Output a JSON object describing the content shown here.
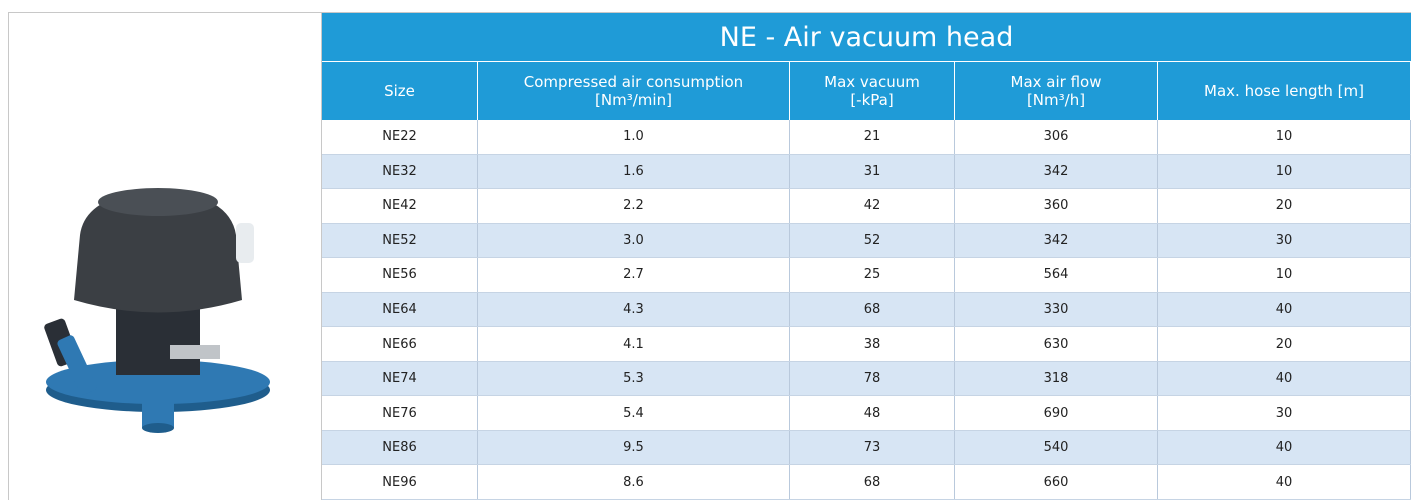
{
  "table": {
    "title": "NE - Air vacuum head",
    "header": [
      [
        "Size"
      ],
      [
        "Compressed air consumption",
        "[Nm³/min]"
      ],
      [
        "Max vacuum",
        "[-kPa]"
      ],
      [
        "Max air flow",
        "[Nm³/h]"
      ],
      [
        "Max. hose length [m]"
      ]
    ],
    "rows": [
      [
        "NE22",
        "1.0",
        "21",
        "306",
        "10"
      ],
      [
        "NE32",
        "1.6",
        "31",
        "342",
        "10"
      ],
      [
        "NE42",
        "2.2",
        "42",
        "360",
        "20"
      ],
      [
        "NE52",
        "3.0",
        "52",
        "342",
        "30"
      ],
      [
        "NE56",
        "2.7",
        "25",
        "564",
        "10"
      ],
      [
        "NE64",
        "4.3",
        "68",
        "330",
        "40"
      ],
      [
        "NE66",
        "4.1",
        "38",
        "630",
        "20"
      ],
      [
        "NE74",
        "5.3",
        "78",
        "318",
        "40"
      ],
      [
        "NE76",
        "5.4",
        "48",
        "690",
        "30"
      ],
      [
        "NE86",
        "9.5",
        "73",
        "540",
        "40"
      ],
      [
        "NE96",
        "8.6",
        "68",
        "660",
        "40"
      ]
    ]
  }
}
